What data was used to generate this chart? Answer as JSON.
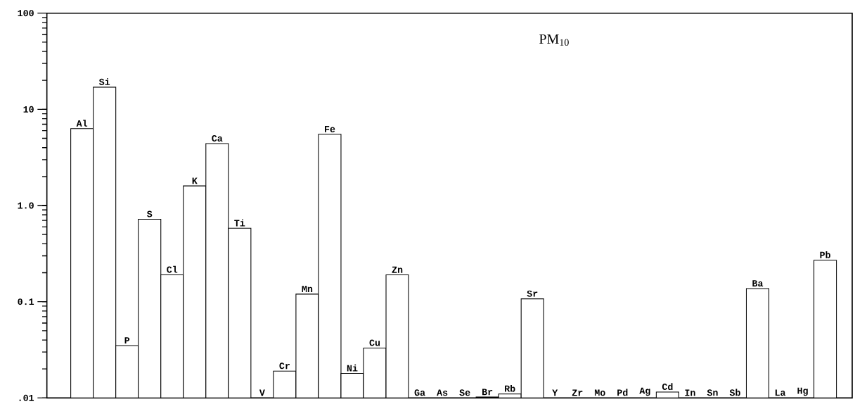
{
  "chart_data": {
    "type": "bar",
    "title": "PM$_{10}$",
    "categories": [
      "Al",
      "Si",
      "P",
      "S",
      "Cl",
      "K",
      "Ca",
      "Ti",
      "V",
      "Cr",
      "Mn",
      "Fe",
      "Ni",
      "Cu",
      "Zn",
      "Ga",
      "As",
      "Se",
      "Br",
      "Rb",
      "Sr",
      "Y",
      "Zr",
      "Mo",
      "Pd",
      "Ag",
      "Cd",
      "In",
      "Sn",
      "Sb",
      "Ba",
      "La",
      "Hg",
      "Pb"
    ],
    "values": [
      6.3,
      17,
      0.035,
      0.72,
      0.19,
      1.6,
      4.4,
      0.58,
      null,
      0.019,
      0.12,
      5.5,
      0.018,
      0.033,
      0.19,
      null,
      null,
      null,
      0.0102,
      0.011,
      0.107,
      null,
      null,
      null,
      null,
      null,
      0.0115,
      null,
      null,
      null,
      0.137,
      null,
      null,
      0.27
    ],
    "color": "#ffffff",
    "log": "y",
    "tick_labels": "y",
    "ylim": [
      0.01,
      100
    ],
    "yticks": [
      {
        "value": 0.01,
        "label": ".01"
      },
      0.1,
      {
        "value": 1,
        "label": "1.0"
      },
      10,
      100
    ]
  }
}
